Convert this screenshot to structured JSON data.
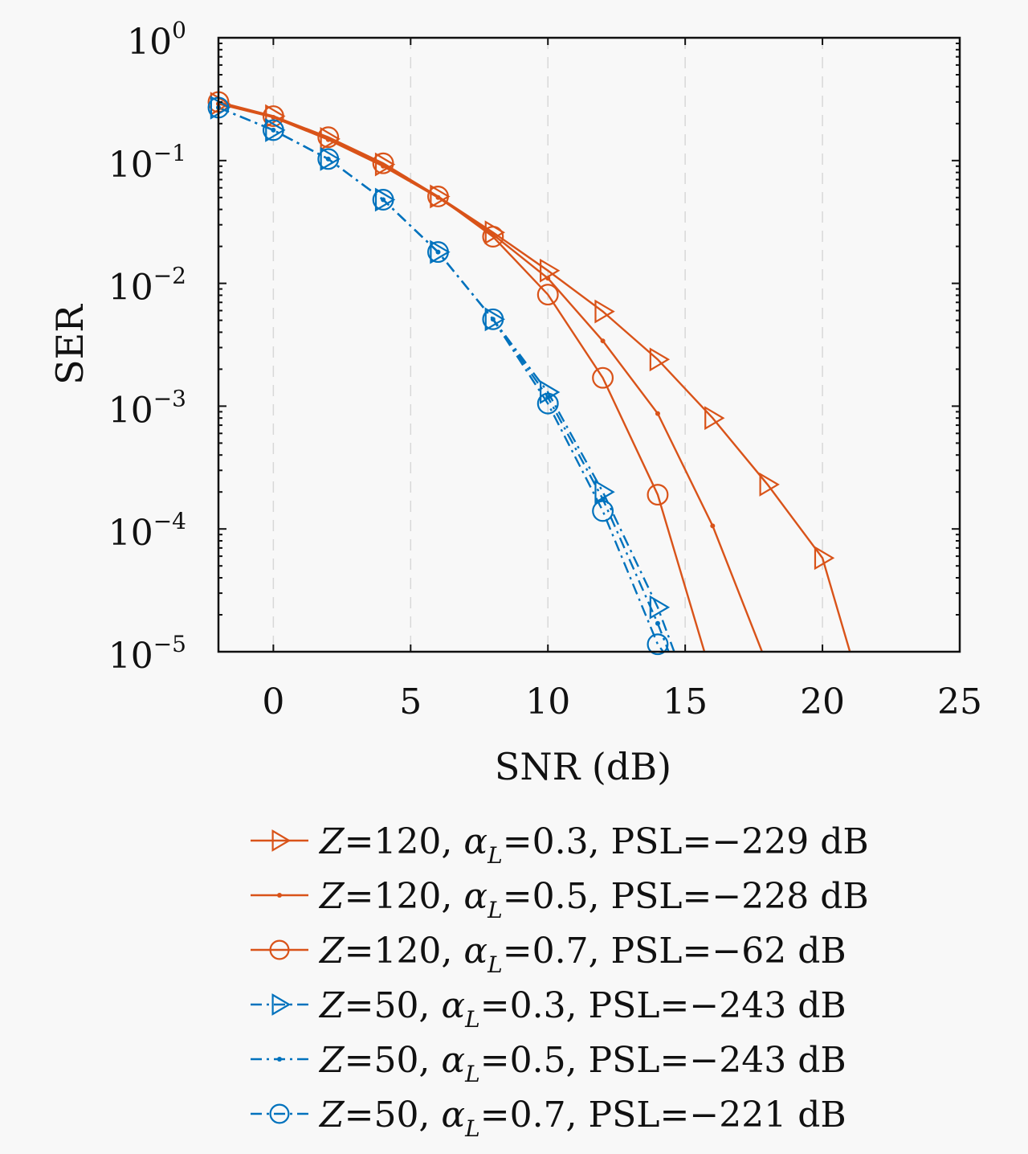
{
  "chart_data": {
    "type": "line",
    "title": "",
    "xlabel": "SNR (dB)",
    "ylabel": "SER",
    "xlim": [
      -2,
      25
    ],
    "ylim": [
      1e-05,
      1
    ],
    "yscale": "log",
    "grid": "vertical dashed",
    "legend_position": "below",
    "xticks": [
      0,
      5,
      10,
      15,
      20,
      25
    ],
    "xtick_labels": [
      "0",
      "5",
      "10",
      "15",
      "20",
      "25"
    ],
    "yticks": [
      0,
      -1,
      -2,
      -3,
      -4,
      -5
    ],
    "ytick_labels": [
      {
        "base": "10",
        "exp": "0"
      },
      {
        "base": "10",
        "exp": "−1"
      },
      {
        "base": "10",
        "exp": "−2"
      },
      {
        "base": "10",
        "exp": "−3"
      },
      {
        "base": "10",
        "exp": "−4"
      },
      {
        "base": "10",
        "exp": "−5"
      }
    ],
    "series": [
      {
        "name": "Z=120, αL=0.3, PSL=−229 dB",
        "legend": {
          "z": "Z",
          "zval": "=120, ",
          "alpha": "α",
          "sub": "L",
          "rest": "=0.3, PSL=−229 dB"
        },
        "color": "#D95319",
        "marker": "triangle-right",
        "style": "solid",
        "x": [
          -2,
          0,
          2,
          4,
          6,
          8,
          10,
          12,
          14,
          16,
          18,
          20,
          21
        ],
        "y": [
          0.29,
          0.23,
          0.15,
          0.093,
          0.051,
          0.026,
          0.0127,
          0.0059,
          0.0024,
          0.0008,
          0.00023,
          5.8e-05,
          1e-05
        ]
      },
      {
        "name": "Z=120, αL=0.5, PSL=−228 dB",
        "legend": {
          "z": "Z",
          "zval": "=120, ",
          "alpha": "α",
          "sub": "L",
          "rest": "=0.5, PSL=−228 dB"
        },
        "color": "#D95319",
        "marker": "dot",
        "style": "solid",
        "x": [
          -2,
          0,
          2,
          4,
          6,
          8,
          10,
          12,
          14,
          16,
          17.8
        ],
        "y": [
          0.29,
          0.225,
          0.148,
          0.09,
          0.05,
          0.025,
          0.011,
          0.0034,
          0.00087,
          0.000106,
          1e-05
        ]
      },
      {
        "name": "Z=120, αL=0.7, PSL=−62 dB",
        "legend": {
          "z": "Z",
          "zval": "=120, ",
          "alpha": "α",
          "sub": "L",
          "rest": "=0.7, PSL=−62 dB"
        },
        "color": "#D95319",
        "marker": "circle",
        "style": "solid",
        "x": [
          -2,
          0,
          2,
          4,
          6,
          8,
          10,
          12,
          14,
          15.7
        ],
        "y": [
          0.3,
          0.23,
          0.155,
          0.095,
          0.051,
          0.024,
          0.0081,
          0.0017,
          0.00019,
          1e-05
        ]
      },
      {
        "name": "Z=50, αL=0.3, PSL=−243 dB",
        "legend": {
          "z": "Z",
          "zval": "=50, ",
          "alpha": "α",
          "sub": "L",
          "rest": "=0.3, PSL=−243 dB"
        },
        "color": "#0072BD",
        "marker": "triangle-right",
        "style": "dashdot",
        "x": [
          -2,
          0,
          2,
          4,
          6,
          8,
          10,
          12,
          14,
          14.6
        ],
        "y": [
          0.27,
          0.177,
          0.103,
          0.048,
          0.018,
          0.0051,
          0.0013,
          0.0002,
          2.3e-05,
          1e-05
        ]
      },
      {
        "name": "Z=50, αL=0.5, PSL=−243 dB",
        "legend": {
          "z": "Z",
          "zval": "=50, ",
          "alpha": "α",
          "sub": "L",
          "rest": "=0.5, PSL=−243 dB"
        },
        "color": "#0072BD",
        "marker": "dot",
        "style": "dashdot",
        "x": [
          -2,
          0,
          2,
          4,
          6,
          8,
          10,
          12,
          14,
          14.4
        ],
        "y": [
          0.27,
          0.177,
          0.103,
          0.048,
          0.018,
          0.0051,
          0.00118,
          0.000175,
          1.7e-05,
          1e-05
        ]
      },
      {
        "name": "Z=50, αL=0.7, PSL=−221 dB",
        "legend": {
          "z": "Z",
          "zval": "=50, ",
          "alpha": "α",
          "sub": "L",
          "rest": "=0.7, PSL=−221 dB"
        },
        "color": "#0072BD",
        "marker": "circle",
        "style": "dashdot",
        "x": [
          -2,
          0,
          2,
          4,
          6,
          8,
          10,
          12,
          14,
          14.2
        ],
        "y": [
          0.27,
          0.177,
          0.103,
          0.048,
          0.018,
          0.0051,
          0.00105,
          0.00014,
          1.15e-05,
          1e-05
        ]
      }
    ]
  }
}
